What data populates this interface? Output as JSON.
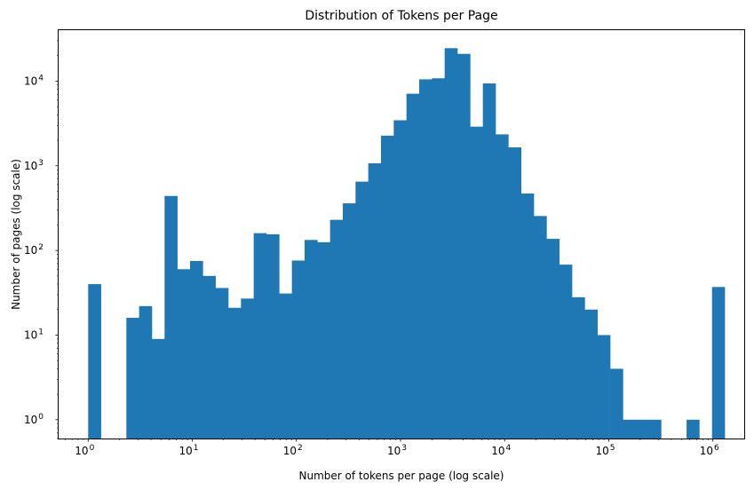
{
  "chart_data": {
    "type": "bar",
    "title": "Distribution of Tokens per Page",
    "xlabel": "Number of tokens per page (log scale)",
    "ylabel": "Number of pages (log scale)",
    "xscale": "log",
    "yscale": "log",
    "xlim": [
      0.52,
      2000000
    ],
    "ylim": [
      0.6,
      40000
    ],
    "grid": false,
    "bar_color": "#1f77b4",
    "x_ticks": [
      {
        "value": 1,
        "base": "10",
        "exp": "0"
      },
      {
        "value": 10,
        "base": "10",
        "exp": "1"
      },
      {
        "value": 100,
        "base": "10",
        "exp": "2"
      },
      {
        "value": 1000,
        "base": "10",
        "exp": "3"
      },
      {
        "value": 10000,
        "base": "10",
        "exp": "4"
      },
      {
        "value": 100000,
        "base": "10",
        "exp": "5"
      },
      {
        "value": 1000000,
        "base": "10",
        "exp": "6"
      }
    ],
    "y_ticks": [
      {
        "value": 1,
        "base": "10",
        "exp": "0"
      },
      {
        "value": 10,
        "base": "10",
        "exp": "1"
      },
      {
        "value": 100,
        "base": "10",
        "exp": "2"
      },
      {
        "value": 1000,
        "base": "10",
        "exp": "3"
      },
      {
        "value": 10000,
        "base": "10",
        "exp": "4"
      }
    ],
    "bins": {
      "start": 1,
      "end": 1300000,
      "count": 50
    },
    "counts": [
      40,
      0,
      0,
      16,
      22,
      9,
      440,
      60,
      75,
      50,
      36,
      21,
      27,
      160,
      155,
      31,
      76,
      133,
      125,
      230,
      360,
      650,
      1070,
      2270,
      3450,
      7100,
      10500,
      10800,
      24500,
      21000,
      2900,
      9400,
      2350,
      1650,
      470,
      255,
      137,
      68,
      28,
      20,
      10,
      4,
      1,
      1,
      1,
      0,
      0,
      1,
      0,
      37
    ]
  }
}
